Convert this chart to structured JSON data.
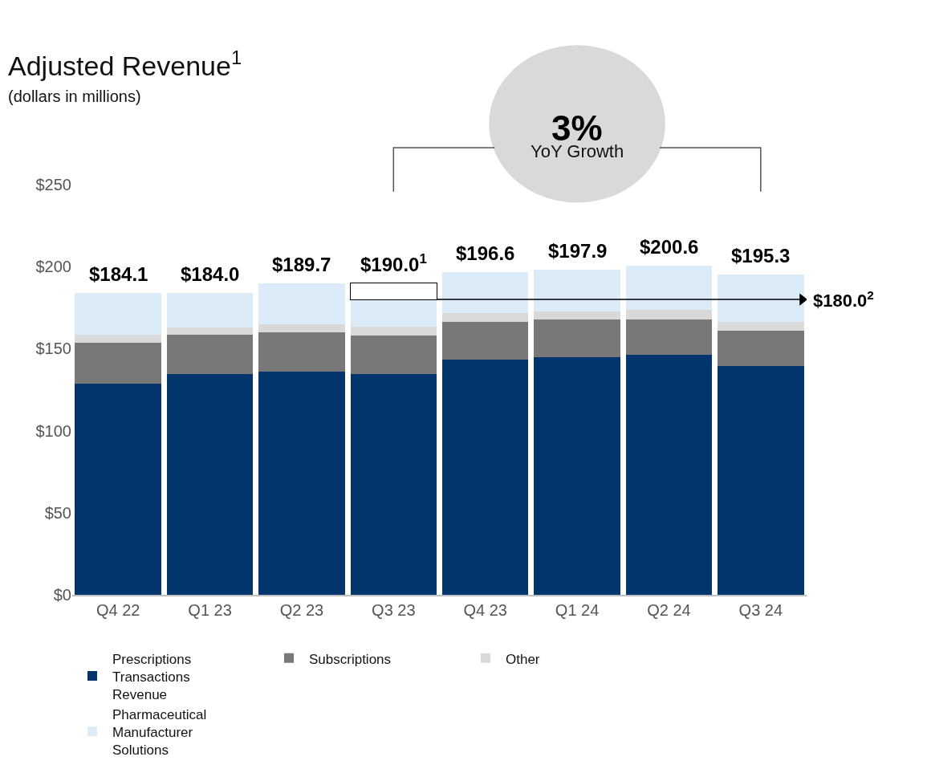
{
  "chart_data": {
    "type": "bar",
    "stacked": true,
    "title": "Adjusted Revenue$^{1}$",
    "subtitle": "(dollars in millions)",
    "categories": [
      "Q4 22",
      "Q1 23",
      "Q2 23",
      "Q3 23",
      "Q4 23",
      "Q1 24",
      "Q2 24",
      "Q3 24"
    ],
    "series": [
      {
        "name": "Prescriptions Transactions Revenue",
        "color": "#02356b",
        "values": [
          128.7,
          134.3,
          136.0,
          134.7,
          143.3,
          144.9,
          146.1,
          139.6
        ]
      },
      {
        "name": "Subscriptions",
        "color": "#787878",
        "values": [
          24.7,
          24.0,
          23.9,
          23.2,
          23.1,
          22.7,
          21.9,
          21.5
        ]
      },
      {
        "name": "Other",
        "color": "#d9d9d9",
        "values": [
          4.9,
          4.4,
          4.9,
          5.7,
          5.3,
          5.3,
          5.7,
          5.3
        ]
      },
      {
        "name": "Pharmaceutical Manufacturer Solutions",
        "color": "#dcebf8",
        "values": [
          25.8,
          21.3,
          24.9,
          16.4,
          24.9,
          25.0,
          26.9,
          28.9
        ]
      },
      {
        "color": "#ffffff",
        "values": [
          null,
          null,
          null,
          10.0,
          null,
          null,
          null,
          null
        ]
      }
    ],
    "totals": [
      "$184.1",
      "$184.0",
      "$189.7",
      "$190.0$^{1}$",
      "$196.6",
      "$197.9",
      "$200.6",
      "$195.3"
    ],
    "annotations": [
      "3%",
      "YoY Growth"
    ],
    "ref_lines": [
      {
        "axis": "y",
        "value": 180,
        "label": "$180.0$^{2}$",
        "color": "#000000"
      }
    ],
    "ylim": [
      0,
      250
    ],
    "yticks": [
      {
        "value": 0,
        "label": "$0"
      },
      {
        "value": 50,
        "label": "$50"
      },
      {
        "value": 100,
        "label": "$100"
      },
      {
        "value": 150,
        "label": "$150"
      },
      {
        "value": 200,
        "label": "$200"
      },
      {
        "value": 250,
        "label": "$250"
      }
    ],
    "grid": false,
    "legend": "bottom"
  }
}
